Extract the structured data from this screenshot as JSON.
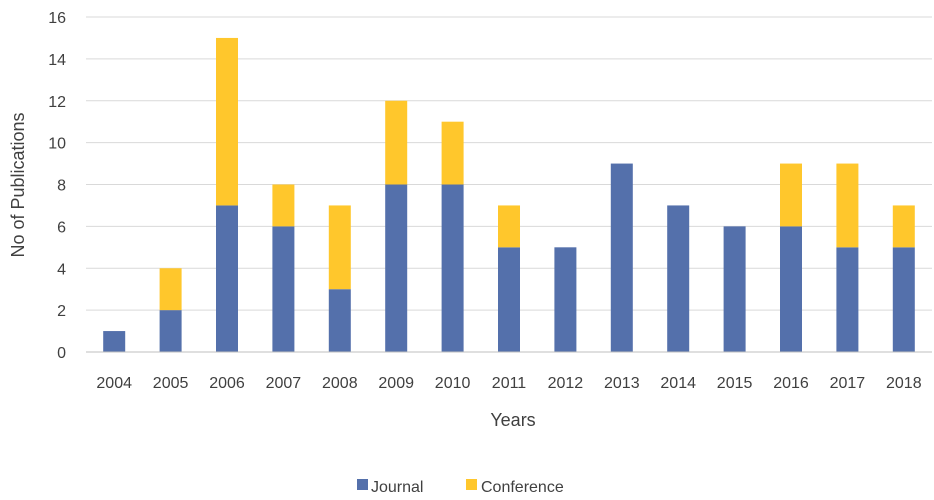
{
  "chart_data": {
    "type": "bar",
    "stacked": true,
    "categories": [
      "2004",
      "2005",
      "2006",
      "2007",
      "2008",
      "2009",
      "2010",
      "2011",
      "2012",
      "2013",
      "2014",
      "2015",
      "2016",
      "2017",
      "2018"
    ],
    "series": [
      {
        "name": "Journal",
        "color": "#5470AB",
        "values": [
          1,
          2,
          7,
          6,
          3,
          8,
          8,
          5,
          5,
          9,
          7,
          6,
          6,
          5,
          5
        ]
      },
      {
        "name": "Conference",
        "color": "#FFC72C",
        "values": [
          0,
          2,
          8,
          2,
          4,
          4,
          3,
          2,
          0,
          0,
          0,
          0,
          3,
          4,
          2
        ]
      }
    ],
    "title": "",
    "xlabel": "Years",
    "ylabel": "No of Publications",
    "ylim": [
      0,
      16
    ],
    "yticks": [
      "0",
      "2",
      "4",
      "6",
      "8",
      "10",
      "12",
      "14",
      "16"
    ],
    "grid": true,
    "legend_position": "bottom",
    "gridline_color": "#D9D9D9",
    "axis_line_color": "#BFBFBF"
  }
}
